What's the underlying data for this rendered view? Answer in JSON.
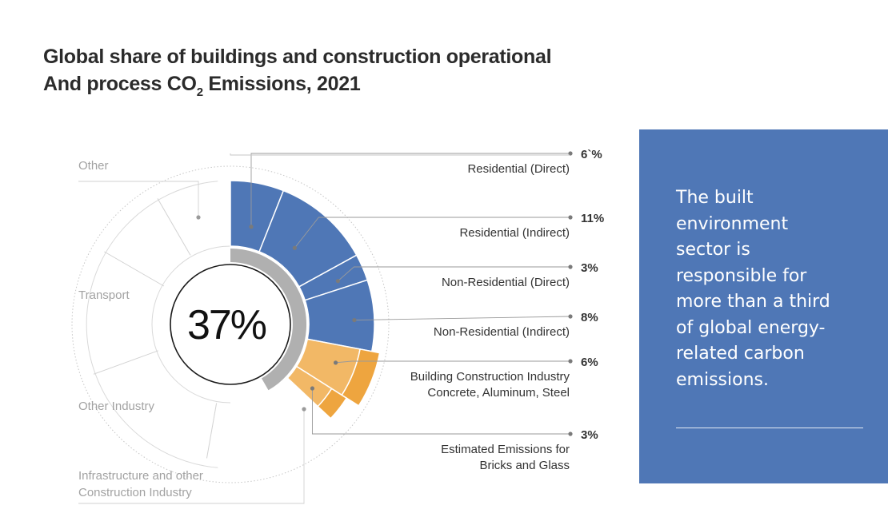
{
  "title": {
    "line1": "Global share of buildings and construction operational",
    "line2_pre": "And process CO",
    "line2_sub": "2",
    "line2_post": " Emissions, 2021"
  },
  "chart_data": {
    "type": "pie",
    "center_label": "37%",
    "slices": [
      {
        "label": "Residential (Direct)",
        "value_label": "6`%",
        "value": 6,
        "color": "#4f77b6"
      },
      {
        "label": "Residential (Indirect)",
        "value_label": "11%",
        "value": 11,
        "color": "#4f77b6"
      },
      {
        "label": "Non-Residential (Direct)",
        "value_label": "3%",
        "value": 3,
        "color": "#4f77b6"
      },
      {
        "label": "Non-Residential (Indirect)",
        "value_label": "8%",
        "value": 8,
        "color": "#4f77b6"
      },
      {
        "label_lines": [
          "Building Construction Industry",
          "Concrete, Aluminum, Steel"
        ],
        "value_label": "6%",
        "value": 6,
        "color": "#f2b866"
      },
      {
        "label_lines": [
          "Estimated Emissions for",
          "Bricks and Glass"
        ],
        "value_label": "3%",
        "value": 3,
        "color": "#f2b866"
      }
    ],
    "other_labels": [
      {
        "lines": [
          "Other"
        ]
      },
      {
        "lines": [
          "Transport"
        ]
      },
      {
        "lines": [
          "Other Industry"
        ]
      },
      {
        "lines": [
          "Infrastructure and other",
          "Construction Industry"
        ]
      }
    ],
    "colors": {
      "buildings": "#4f77b6",
      "construction": "#f2b866",
      "construction_outer": "#eea53f",
      "inner_ring": "#b0b0b0"
    }
  },
  "panel": {
    "text": "The built environment sector is responsible for more than a third of global energy-related carbon emissions."
  }
}
